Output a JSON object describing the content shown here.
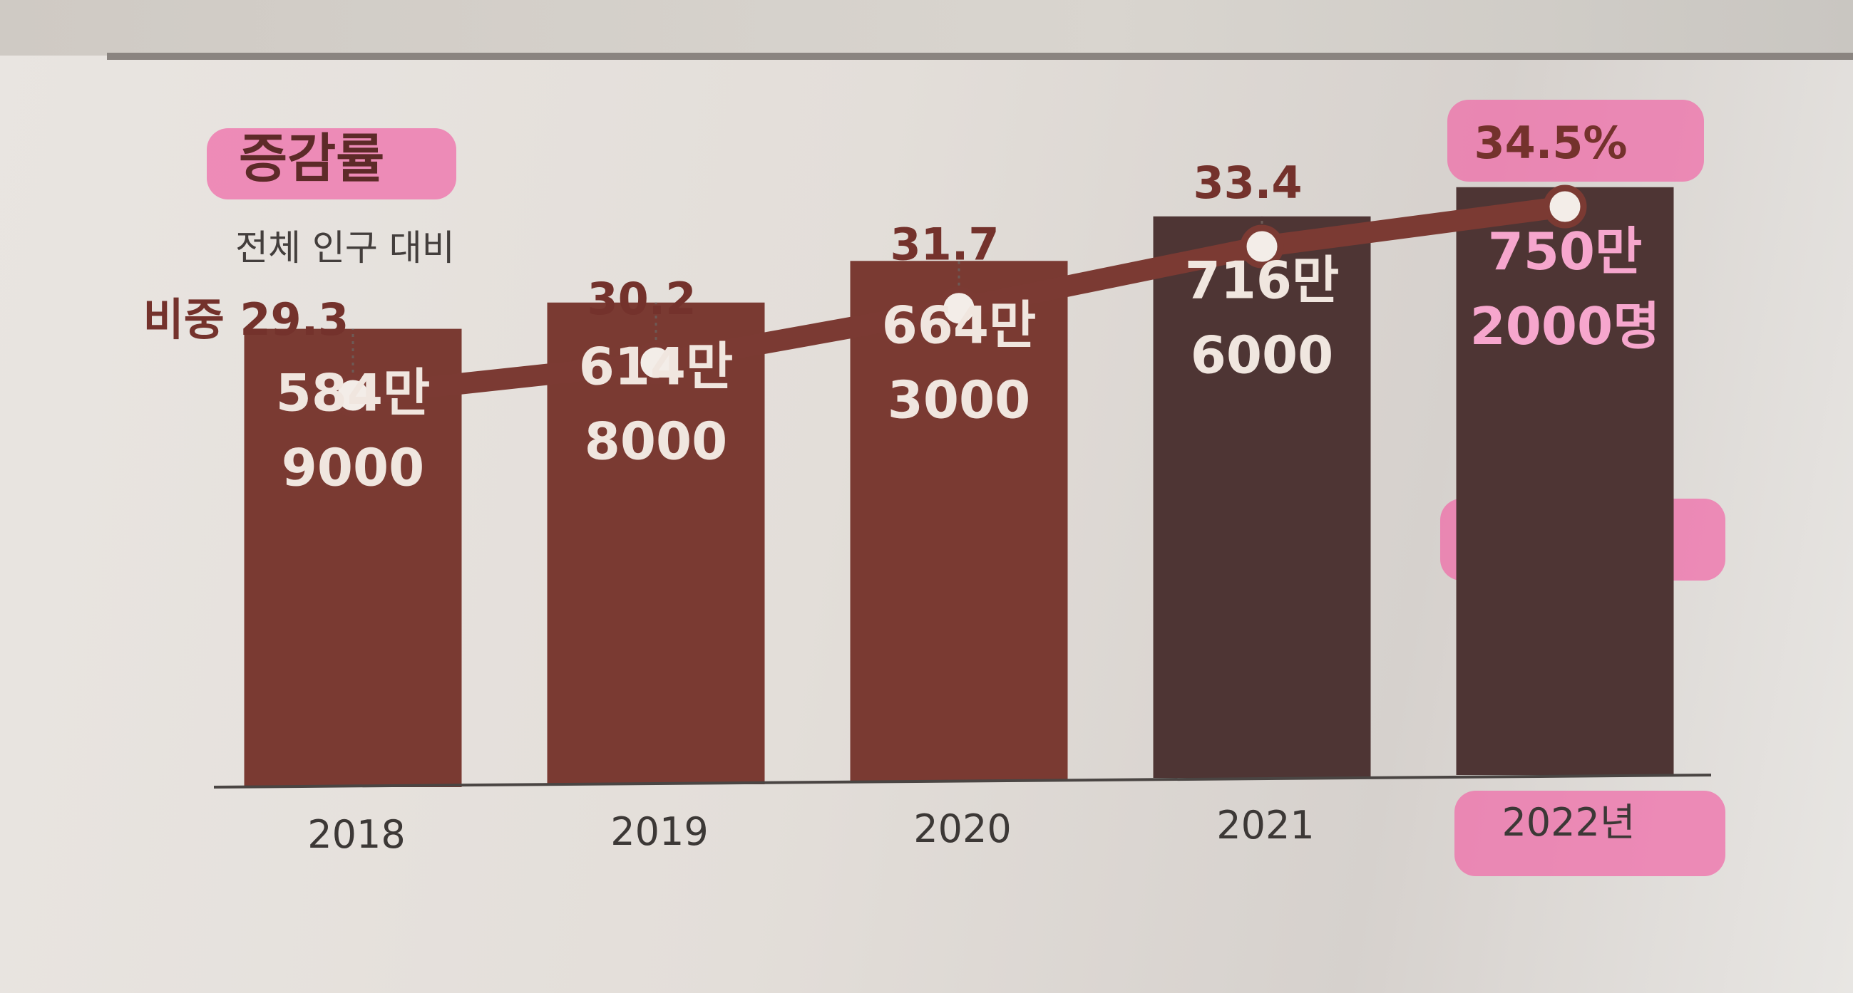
{
  "chart_data": {
    "type": "bar",
    "title": "증감률",
    "subtitle": "전체 인구 대비",
    "categories": [
      "2018",
      "2019",
      "2020",
      "2021",
      "2022년"
    ],
    "series": [
      {
        "values": [
          5849000,
          6148000,
          6643000,
          7166000,
          7502000
        ],
        "labels_top": [
          "584만",
          "614만",
          "664만",
          "716만",
          "750만"
        ],
        "labels_bottom": [
          "9000",
          "8000",
          "3000",
          "6000",
          "2000명"
        ]
      },
      {
        "type": "line",
        "values": [
          29.3,
          30.2,
          31.7,
          33.4,
          34.5
        ],
        "labels": [
          "비중 29.3",
          "30.2",
          "31.7",
          "33.4",
          "34.5%"
        ]
      }
    ],
    "highlight_color": "#f06aa8",
    "bar_color": "#7a3a32",
    "line_color": "#7b3a33",
    "grid": false,
    "legend": "none"
  }
}
